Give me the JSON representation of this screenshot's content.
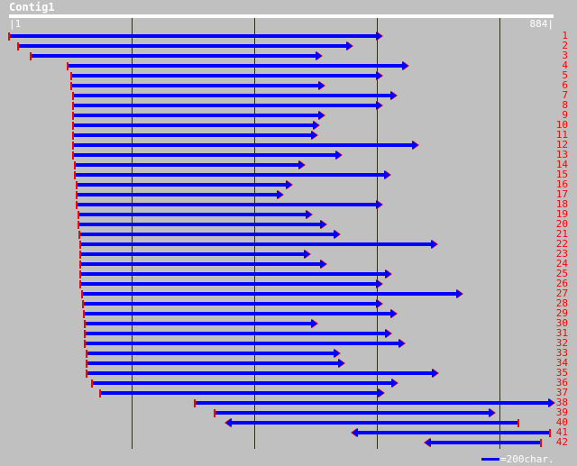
{
  "title": "Contig1",
  "ruler": {
    "start_label": "1",
    "end_label": "884",
    "length": 884
  },
  "scale": {
    "label": "=200char.",
    "unit_chars": 200
  },
  "colors": {
    "read": "#0000ff",
    "marker": "#ff0000",
    "grid": "#2e2e18"
  },
  "reads": [
    {
      "id": "1",
      "start": 1,
      "end": 602,
      "dir": "fwd"
    },
    {
      "id": "2",
      "start": 16,
      "end": 554,
      "dir": "fwd"
    },
    {
      "id": "3",
      "start": 36,
      "end": 504,
      "dir": "fwd"
    },
    {
      "id": "4",
      "start": 96,
      "end": 645,
      "dir": "fwd"
    },
    {
      "id": "5",
      "start": 103,
      "end": 602,
      "dir": "fwd"
    },
    {
      "id": "6",
      "start": 103,
      "end": 508,
      "dir": "fwd"
    },
    {
      "id": "7",
      "start": 105,
      "end": 626,
      "dir": "fwd"
    },
    {
      "id": "8",
      "start": 105,
      "end": 602,
      "dir": "fwd"
    },
    {
      "id": "9",
      "start": 105,
      "end": 508,
      "dir": "fwd"
    },
    {
      "id": "10",
      "start": 105,
      "end": 499,
      "dir": "fwd"
    },
    {
      "id": "11",
      "start": 105,
      "end": 496,
      "dir": "fwd"
    },
    {
      "id": "12",
      "start": 106,
      "end": 661,
      "dir": "fwd"
    },
    {
      "id": "13",
      "start": 106,
      "end": 537,
      "dir": "fwd"
    },
    {
      "id": "14",
      "start": 108,
      "end": 476,
      "dir": "fwd"
    },
    {
      "id": "15",
      "start": 109,
      "end": 616,
      "dir": "fwd"
    },
    {
      "id": "16",
      "start": 111,
      "end": 455,
      "dir": "fwd"
    },
    {
      "id": "17",
      "start": 111,
      "end": 440,
      "dir": "fwd"
    },
    {
      "id": "18",
      "start": 112,
      "end": 602,
      "dir": "fwd"
    },
    {
      "id": "19",
      "start": 114,
      "end": 488,
      "dir": "fwd"
    },
    {
      "id": "20",
      "start": 114,
      "end": 511,
      "dir": "fwd"
    },
    {
      "id": "21",
      "start": 115,
      "end": 533,
      "dir": "fwd"
    },
    {
      "id": "22",
      "start": 117,
      "end": 692,
      "dir": "fwd"
    },
    {
      "id": "23",
      "start": 117,
      "end": 485,
      "dir": "fwd"
    },
    {
      "id": "24",
      "start": 117,
      "end": 511,
      "dir": "fwd"
    },
    {
      "id": "25",
      "start": 117,
      "end": 617,
      "dir": "fwd"
    },
    {
      "id": "26",
      "start": 117,
      "end": 602,
      "dir": "fwd"
    },
    {
      "id": "27",
      "start": 120,
      "end": 733,
      "dir": "fwd"
    },
    {
      "id": "28",
      "start": 121,
      "end": 602,
      "dir": "fwd"
    },
    {
      "id": "29",
      "start": 123,
      "end": 626,
      "dir": "fwd"
    },
    {
      "id": "30",
      "start": 124,
      "end": 496,
      "dir": "fwd"
    },
    {
      "id": "31",
      "start": 124,
      "end": 617,
      "dir": "fwd"
    },
    {
      "id": "32",
      "start": 125,
      "end": 639,
      "dir": "fwd"
    },
    {
      "id": "33",
      "start": 127,
      "end": 533,
      "dir": "fwd"
    },
    {
      "id": "34",
      "start": 127,
      "end": 540,
      "dir": "fwd"
    },
    {
      "id": "35",
      "start": 128,
      "end": 694,
      "dir": "fwd"
    },
    {
      "id": "36",
      "start": 137,
      "end": 627,
      "dir": "fwd"
    },
    {
      "id": "37",
      "start": 149,
      "end": 605,
      "dir": "fwd"
    },
    {
      "id": "38",
      "start": 304,
      "end": 884,
      "dir": "fwd"
    },
    {
      "id": "39",
      "start": 336,
      "end": 786,
      "dir": "fwd"
    },
    {
      "id": "40",
      "start": 362,
      "end": 832,
      "dir": "rev"
    },
    {
      "id": "41",
      "start": 567,
      "end": 884,
      "dir": "rev"
    },
    {
      "id": "42",
      "start": 687,
      "end": 868,
      "dir": "rev"
    }
  ]
}
